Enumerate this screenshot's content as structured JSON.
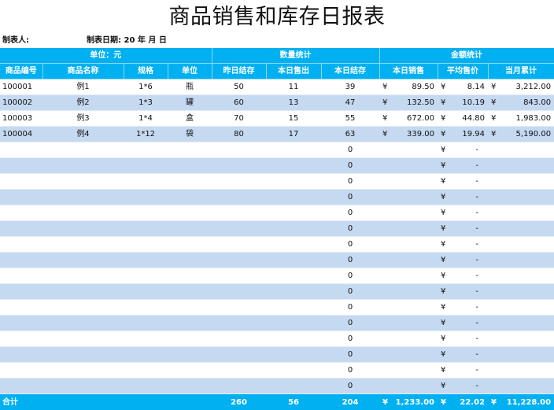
{
  "header": {
    "title": "商品销售和库存日报表",
    "maker_label": "制表人:",
    "date_label": "制表日期: 20  年  月  日"
  },
  "table": {
    "group_headers": [
      {
        "label": "单位：元",
        "span": 4
      },
      {
        "label": "数量统计",
        "span": 3
      },
      {
        "label": "金额统计",
        "span": 3
      }
    ],
    "columns": [
      "商品编号",
      "商品名称",
      "规格",
      "单位",
      "昨日结存",
      "本日售出",
      "本日结存",
      "本日销售",
      "平均售价",
      "当月累计"
    ],
    "currency_symbol": "¥",
    "rows": [
      {
        "code": "100001",
        "name": "例1",
        "spec": "1*6",
        "unit": "瓶",
        "prev_stock": "50",
        "sold": "11",
        "stock": "39",
        "sales": "89.50",
        "avg_price": "8.14",
        "month_total": "3,212.00"
      },
      {
        "code": "100002",
        "name": "例2",
        "spec": "1*3",
        "unit": "罐",
        "prev_stock": "60",
        "sold": "13",
        "stock": "47",
        "sales": "132.50",
        "avg_price": "10.19",
        "month_total": "843.00"
      },
      {
        "code": "100003",
        "name": "例3",
        "spec": "1*4",
        "unit": "盒",
        "prev_stock": "70",
        "sold": "15",
        "stock": "55",
        "sales": "672.00",
        "avg_price": "44.80",
        "month_total": "1,983.00"
      },
      {
        "code": "100004",
        "name": "例4",
        "spec": "1*12",
        "unit": "袋",
        "prev_stock": "80",
        "sold": "17",
        "stock": "63",
        "sales": "339.00",
        "avg_price": "19.94",
        "month_total": "5,190.00"
      }
    ],
    "empty_row": {
      "stock": "0",
      "avg_price": "-"
    },
    "empty_row_count": 16,
    "total": {
      "label": "合计",
      "prev_stock": "260",
      "sold": "56",
      "stock": "204",
      "sales": "1,233.00",
      "avg_price": "22.02",
      "month_total": "11,228.00"
    }
  },
  "colors": {
    "header_bg": "#00b0f0",
    "stripe": "#c5d9f1"
  }
}
